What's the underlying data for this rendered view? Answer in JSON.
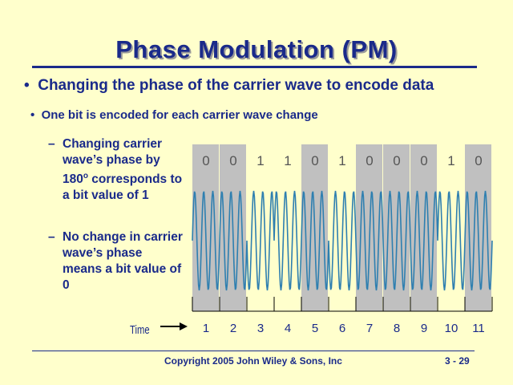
{
  "slide": {
    "title": "Phase Modulation (PM)",
    "bullet1": "Changing the phase of the carrier wave to encode data",
    "bullet2": "One bit is encoded for each carrier wave change",
    "sub1": "Changing carrier wave’s phase by 180",
    "sub1_sup": "o",
    "sub1_rest": "corresponds to a bit value of 1",
    "sub2": "No change in carrier wave’s phase means a bit value of 0",
    "copyright": "Copyright 2005 John Wiley & Sons, Inc",
    "page": "3 - 29"
  },
  "diagram": {
    "time_label": "Time",
    "bits": [
      "0",
      "0",
      "1",
      "1",
      "0",
      "1",
      "0",
      "0",
      "0",
      "1",
      "0"
    ],
    "periods": [
      "1",
      "2",
      "3",
      "4",
      "5",
      "6",
      "7",
      "8",
      "9",
      "10",
      "11"
    ],
    "shaded_periods": [
      1,
      2,
      5,
      7,
      8,
      9,
      11
    ],
    "colors": {
      "shade": "#C0C0C0",
      "wave": "#2E7FB0",
      "text": "#1a2a8a",
      "bit_label": "#555555"
    }
  }
}
